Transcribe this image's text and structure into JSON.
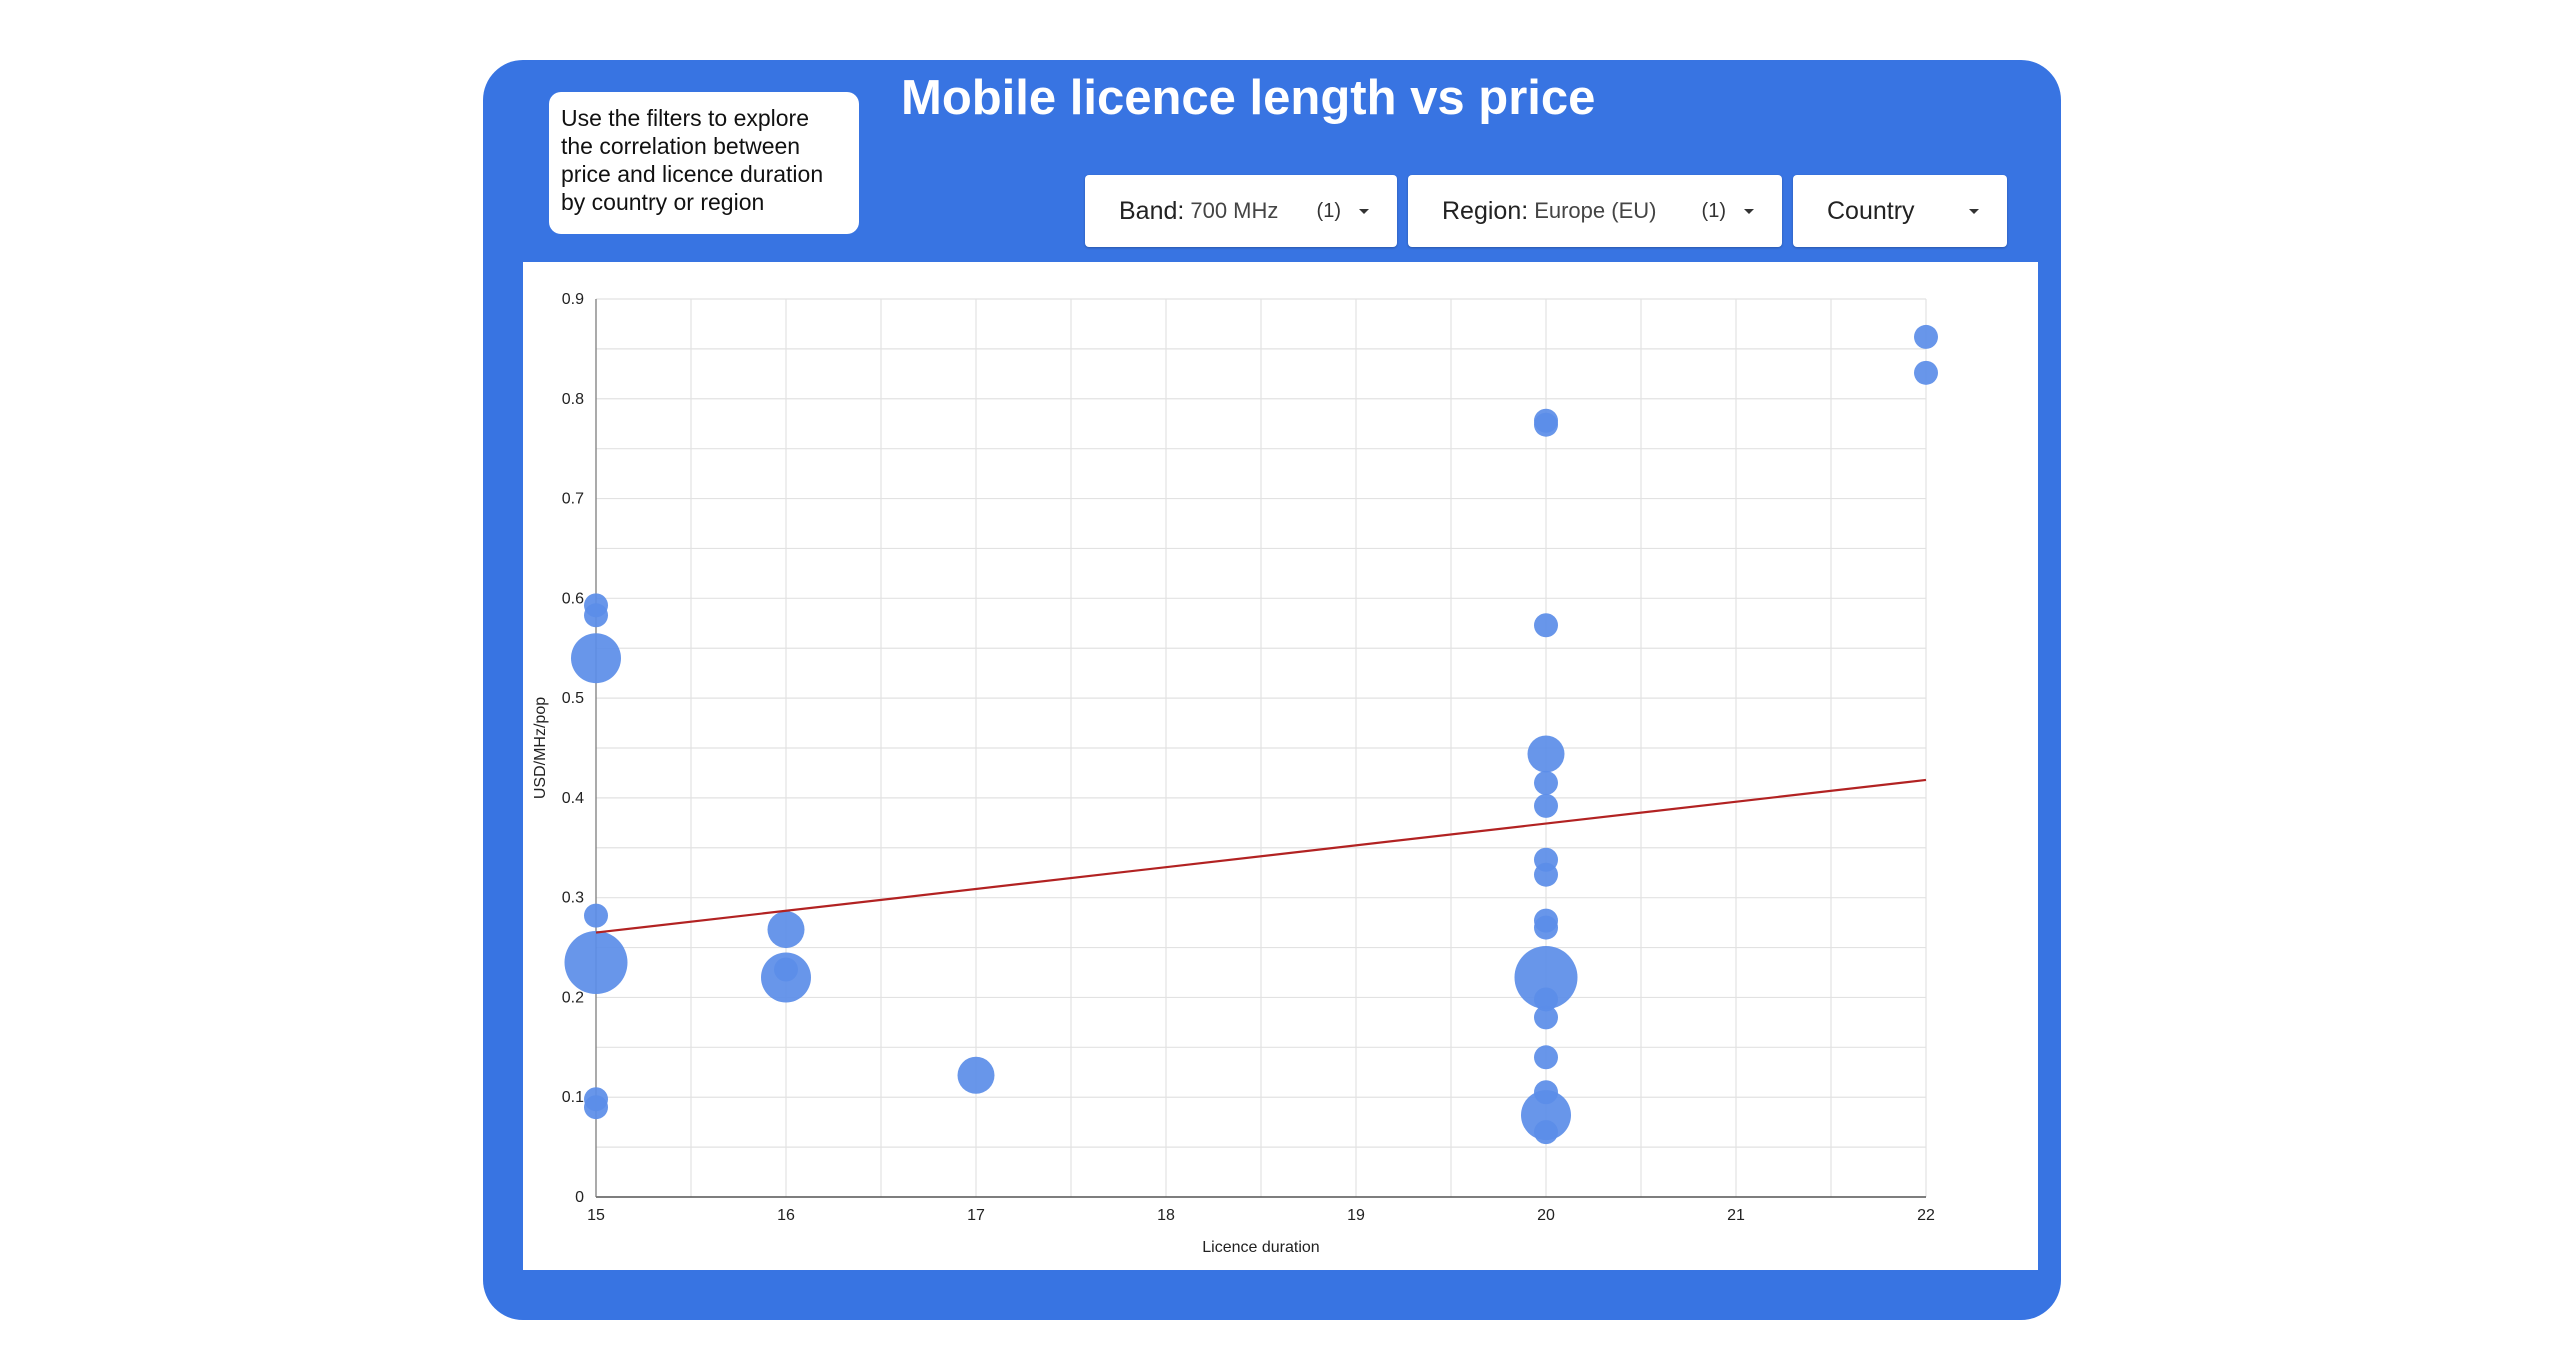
{
  "help": {
    "lines": [
      "Use the filters to explore",
      "the correlation between",
      "price and licence duration",
      "by country or region"
    ]
  },
  "title": "Mobile licence length vs price",
  "filters": [
    {
      "label": "Band",
      "value": "700 MHz",
      "count": "(1)"
    },
    {
      "label": "Region",
      "value": "Europe (EU)",
      "count": "(1)"
    },
    {
      "label": "Country",
      "value": "",
      "count": ""
    }
  ],
  "colors": {
    "panel": "#3874e2",
    "bubble": "#5b8de8",
    "trendline": "#b22222",
    "grid": "#e2e2e2"
  },
  "chart_data": {
    "type": "scatter",
    "xlabel": "Licence duration",
    "ylabel": "USD/MHz/pop",
    "xlim": [
      15,
      22
    ],
    "ylim": [
      0,
      0.9
    ],
    "x_ticks": [
      15,
      16,
      17,
      18,
      19,
      20,
      21,
      22
    ],
    "y_ticks": [
      0,
      0.1,
      0.2,
      0.3,
      0.4,
      0.5,
      0.6,
      0.7,
      0.8,
      0.9
    ],
    "x_tick_labels": [
      "15",
      "16",
      "17",
      "18",
      "19",
      "20",
      "21",
      "22"
    ],
    "y_tick_labels": [
      "0",
      "0.1",
      "0.2",
      "0.3",
      "0.4",
      "0.5",
      "0.6",
      "0.7",
      "0.8",
      "0.9"
    ],
    "grid": true,
    "points": [
      {
        "x": 15,
        "y": 0.593,
        "size": 1
      },
      {
        "x": 15,
        "y": 0.583,
        "size": 1
      },
      {
        "x": 15,
        "y": 0.54,
        "size": 3
      },
      {
        "x": 15,
        "y": 0.282,
        "size": 1
      },
      {
        "x": 15,
        "y": 0.235,
        "size": 4
      },
      {
        "x": 15,
        "y": 0.098,
        "size": 1
      },
      {
        "x": 15,
        "y": 0.09,
        "size": 1
      },
      {
        "x": 16,
        "y": 0.268,
        "size": 2
      },
      {
        "x": 16,
        "y": 0.228,
        "size": 1
      },
      {
        "x": 16,
        "y": 0.22,
        "size": 3
      },
      {
        "x": 17,
        "y": 0.122,
        "size": 2
      },
      {
        "x": 20,
        "y": 0.778,
        "size": 1
      },
      {
        "x": 20,
        "y": 0.774,
        "size": 1
      },
      {
        "x": 20,
        "y": 0.573,
        "size": 1
      },
      {
        "x": 20,
        "y": 0.444,
        "size": 2
      },
      {
        "x": 20,
        "y": 0.415,
        "size": 1
      },
      {
        "x": 20,
        "y": 0.392,
        "size": 1
      },
      {
        "x": 20,
        "y": 0.338,
        "size": 1
      },
      {
        "x": 20,
        "y": 0.323,
        "size": 1
      },
      {
        "x": 20,
        "y": 0.277,
        "size": 1
      },
      {
        "x": 20,
        "y": 0.27,
        "size": 1
      },
      {
        "x": 20,
        "y": 0.22,
        "size": 4
      },
      {
        "x": 20,
        "y": 0.198,
        "size": 1
      },
      {
        "x": 20,
        "y": 0.18,
        "size": 1
      },
      {
        "x": 20,
        "y": 0.14,
        "size": 1
      },
      {
        "x": 20,
        "y": 0.105,
        "size": 1
      },
      {
        "x": 20,
        "y": 0.082,
        "size": 3
      },
      {
        "x": 20,
        "y": 0.065,
        "size": 1
      },
      {
        "x": 22,
        "y": 0.862,
        "size": 1
      },
      {
        "x": 22,
        "y": 0.826,
        "size": 1
      }
    ],
    "trendline": {
      "x": [
        15,
        22
      ],
      "y": [
        0.265,
        0.418
      ]
    }
  }
}
